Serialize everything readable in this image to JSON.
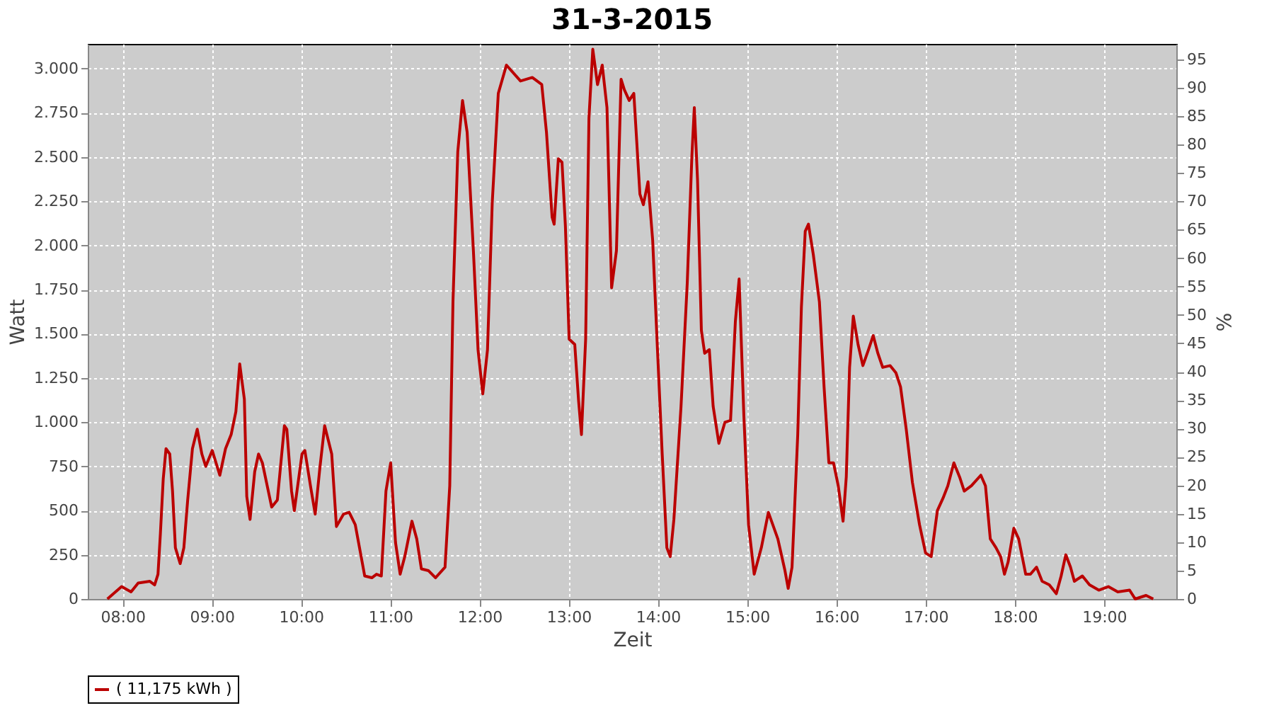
{
  "chart_data": {
    "type": "line",
    "title": "31-3-2015",
    "xlabel": "Zeit",
    "ylabel": "Watt",
    "y2label": "%",
    "xlim": [
      7.61,
      19.81
    ],
    "xticks": [
      {
        "value": 8,
        "label": "08:00"
      },
      {
        "value": 9,
        "label": "09:00"
      },
      {
        "value": 10,
        "label": "10:00"
      },
      {
        "value": 11,
        "label": "11:00"
      },
      {
        "value": 12,
        "label": "12:00"
      },
      {
        "value": 13,
        "label": "13:00"
      },
      {
        "value": 14,
        "label": "14:00"
      },
      {
        "value": 15,
        "label": "15:00"
      },
      {
        "value": 16,
        "label": "16:00"
      },
      {
        "value": 17,
        "label": "17:00"
      },
      {
        "value": 18,
        "label": "18:00"
      },
      {
        "value": 19,
        "label": "19:00"
      }
    ],
    "ylim": [
      0,
      3140
    ],
    "yticks": [
      0,
      250,
      500,
      750,
      {
        "value": 1000,
        "label": "1.000"
      },
      {
        "value": 1250,
        "label": "1.250"
      },
      {
        "value": 1500,
        "label": "1.500"
      },
      {
        "value": 1750,
        "label": "1.750"
      },
      {
        "value": 2000,
        "label": "2.000"
      },
      {
        "value": 2250,
        "label": "2.250"
      },
      {
        "value": 2500,
        "label": "2.500"
      },
      {
        "value": 2750,
        "label": "2.750"
      },
      {
        "value": 3000,
        "label": "3.000"
      }
    ],
    "y2lim": [
      0,
      97.7
    ],
    "y2ticks": [
      0,
      5,
      10,
      15,
      20,
      25,
      30,
      35,
      40,
      45,
      50,
      55,
      60,
      65,
      70,
      75,
      80,
      85,
      90,
      95
    ],
    "grid": true,
    "legend": "bottom",
    "marker": "none",
    "line_style": "solid",
    "series": [
      {
        "name": "( 11,175 kWh )",
        "color": "#bb0000",
        "x": [
          7.83,
          7.989,
          8.095,
          8.175,
          8.306,
          8.36,
          8.397,
          8.424,
          8.456,
          8.487,
          8.529,
          8.56,
          8.592,
          8.646,
          8.687,
          8.73,
          8.783,
          8.837,
          8.889,
          8.932,
          9.005,
          9.09,
          9.154,
          9.217,
          9.27,
          9.313,
          9.365,
          9.392,
          9.429,
          9.481,
          9.524,
          9.567,
          9.671,
          9.735,
          9.814,
          9.841,
          9.894,
          9.925,
          10.011,
          10.043,
          10.106,
          10.159,
          10.211,
          10.265,
          10.344,
          10.397,
          10.476,
          10.54,
          10.608,
          10.714,
          10.794,
          10.846,
          10.9,
          10.952,
          11.005,
          11.059,
          11.111,
          11.163,
          11.243,
          11.297,
          11.349,
          11.429,
          11.508,
          11.614,
          11.667,
          11.703,
          11.757,
          11.81,
          11.862,
          11.932,
          11.984,
          12.037,
          12.09,
          12.143,
          12.211,
          12.302,
          12.46,
          12.592,
          12.698,
          12.751,
          12.814,
          12.837,
          12.884,
          12.925,
          12.963,
          13.005,
          13.068,
          13.111,
          13.143,
          13.19,
          13.227,
          13.27,
          13.323,
          13.376,
          13.429,
          13.481,
          13.535,
          13.587,
          13.624,
          13.678,
          13.73,
          13.798,
          13.837,
          13.889,
          13.941,
          13.995,
          14.048,
          14.1,
          14.138,
          14.179,
          14.259,
          14.329,
          14.381,
          14.408,
          14.444,
          14.487,
          14.524,
          14.576,
          14.619,
          14.683,
          14.751,
          14.814,
          14.868,
          14.91,
          14.963,
          15.016,
          15.079,
          15.159,
          15.238,
          15.344,
          15.424,
          15.46,
          15.503,
          15.529,
          15.567,
          15.608,
          15.651,
          15.687,
          15.741,
          15.81,
          15.862,
          15.916,
          15.968,
          16.021,
          16.075,
          16.111,
          16.148,
          16.19,
          16.243,
          16.297,
          16.36,
          16.413,
          16.465,
          16.519,
          16.603,
          16.667,
          16.719,
          16.783,
          16.852,
          16.932,
          17.0,
          17.063,
          17.132,
          17.195,
          17.249,
          17.317,
          17.381,
          17.433,
          17.513,
          17.619,
          17.671,
          17.725,
          17.789,
          17.841,
          17.884,
          17.925,
          17.989,
          18.043,
          18.122,
          18.175,
          18.243,
          18.306,
          18.386,
          18.465,
          18.519,
          18.571,
          18.624,
          18.667,
          18.757,
          18.837,
          18.941,
          19.048,
          19.154,
          19.286,
          19.349,
          19.471,
          19.551
        ],
        "values": [
          0,
          70,
          40,
          90,
          100,
          80,
          140,
          370,
          680,
          850,
          820,
          610,
          290,
          200,
          290,
          560,
          850,
          960,
          820,
          750,
          840,
          700,
          850,
          930,
          1060,
          1330,
          1130,
          580,
          450,
          720,
          820,
          770,
          520,
          560,
          980,
          960,
          610,
          500,
          820,
          840,
          640,
          480,
          740,
          980,
          820,
          410,
          480,
          490,
          420,
          130,
          120,
          140,
          130,
          610,
          770,
          320,
          140,
          240,
          440,
          340,
          170,
          160,
          120,
          180,
          640,
          1680,
          2530,
          2820,
          2640,
          1970,
          1410,
          1160,
          1410,
          2240,
          2860,
          3020,
          2930,
          2950,
          2910,
          2640,
          2160,
          2120,
          2490,
          2470,
          2110,
          1470,
          1440,
          1120,
          930,
          1470,
          2720,
          3110,
          2910,
          3020,
          2780,
          1760,
          1970,
          2940,
          2880,
          2820,
          2860,
          2290,
          2230,
          2360,
          2030,
          1410,
          820,
          290,
          240,
          450,
          1090,
          1790,
          2510,
          2780,
          2370,
          1520,
          1390,
          1410,
          1090,
          880,
          1000,
          1010,
          1570,
          1810,
          1040,
          420,
          140,
          290,
          490,
          340,
          160,
          60,
          180,
          480,
          930,
          1650,
          2080,
          2120,
          1950,
          1680,
          1200,
          770,
          770,
          640,
          440,
          690,
          1310,
          1600,
          1440,
          1320,
          1410,
          1490,
          1390,
          1310,
          1320,
          1280,
          1200,
          960,
          660,
          420,
          260,
          240,
          500,
          570,
          640,
          770,
          690,
          610,
          640,
          700,
          640,
          340,
          290,
          240,
          140,
          210,
          400,
          340,
          140,
          140,
          180,
          100,
          80,
          30,
          130,
          250,
          180,
          100,
          130,
          80,
          50,
          70,
          40,
          50,
          0,
          20,
          0
        ]
      }
    ]
  }
}
